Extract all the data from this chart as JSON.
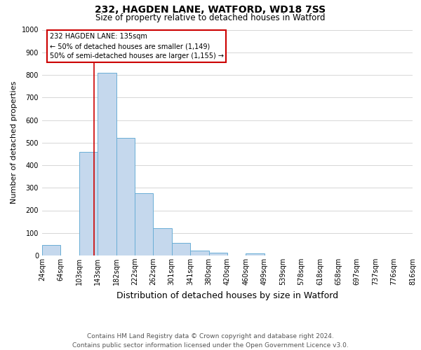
{
  "title": "232, HAGDEN LANE, WATFORD, WD18 7SS",
  "subtitle": "Size of property relative to detached houses in Watford",
  "xlabel": "Distribution of detached houses by size in Watford",
  "ylabel": "Number of detached properties",
  "bin_labels": [
    "24sqm",
    "64sqm",
    "103sqm",
    "143sqm",
    "182sqm",
    "222sqm",
    "262sqm",
    "301sqm",
    "341sqm",
    "380sqm",
    "420sqm",
    "460sqm",
    "499sqm",
    "539sqm",
    "578sqm",
    "618sqm",
    "658sqm",
    "697sqm",
    "737sqm",
    "776sqm",
    "816sqm"
  ],
  "bar_values": [
    46,
    0,
    460,
    810,
    520,
    275,
    122,
    57,
    22,
    12,
    0,
    8,
    0,
    0,
    0,
    0,
    0,
    0,
    0,
    0
  ],
  "bar_color": "#c5d8ed",
  "bar_edge_color": "#6aaed6",
  "property_line_label": "232 HAGDEN LANE: 135sqm",
  "annotation_line1": "← 50% of detached houses are smaller (1,149)",
  "annotation_line2": "50% of semi-detached houses are larger (1,155) →",
  "annotation_box_color": "#ffffff",
  "annotation_box_edge_color": "#cc0000",
  "vline_color": "#cc0000",
  "vline_position": 2.8,
  "ylim": [
    0,
    1000
  ],
  "yticks": [
    0,
    100,
    200,
    300,
    400,
    500,
    600,
    700,
    800,
    900,
    1000
  ],
  "footer_line1": "Contains HM Land Registry data © Crown copyright and database right 2024.",
  "footer_line2": "Contains public sector information licensed under the Open Government Licence v3.0.",
  "background_color": "#ffffff",
  "grid_color": "#d0d0d0",
  "title_fontsize": 10,
  "subtitle_fontsize": 8.5,
  "xlabel_fontsize": 8,
  "ylabel_fontsize": 8,
  "tick_fontsize": 7,
  "annot_fontsize": 7,
  "footer_fontsize": 6.5
}
